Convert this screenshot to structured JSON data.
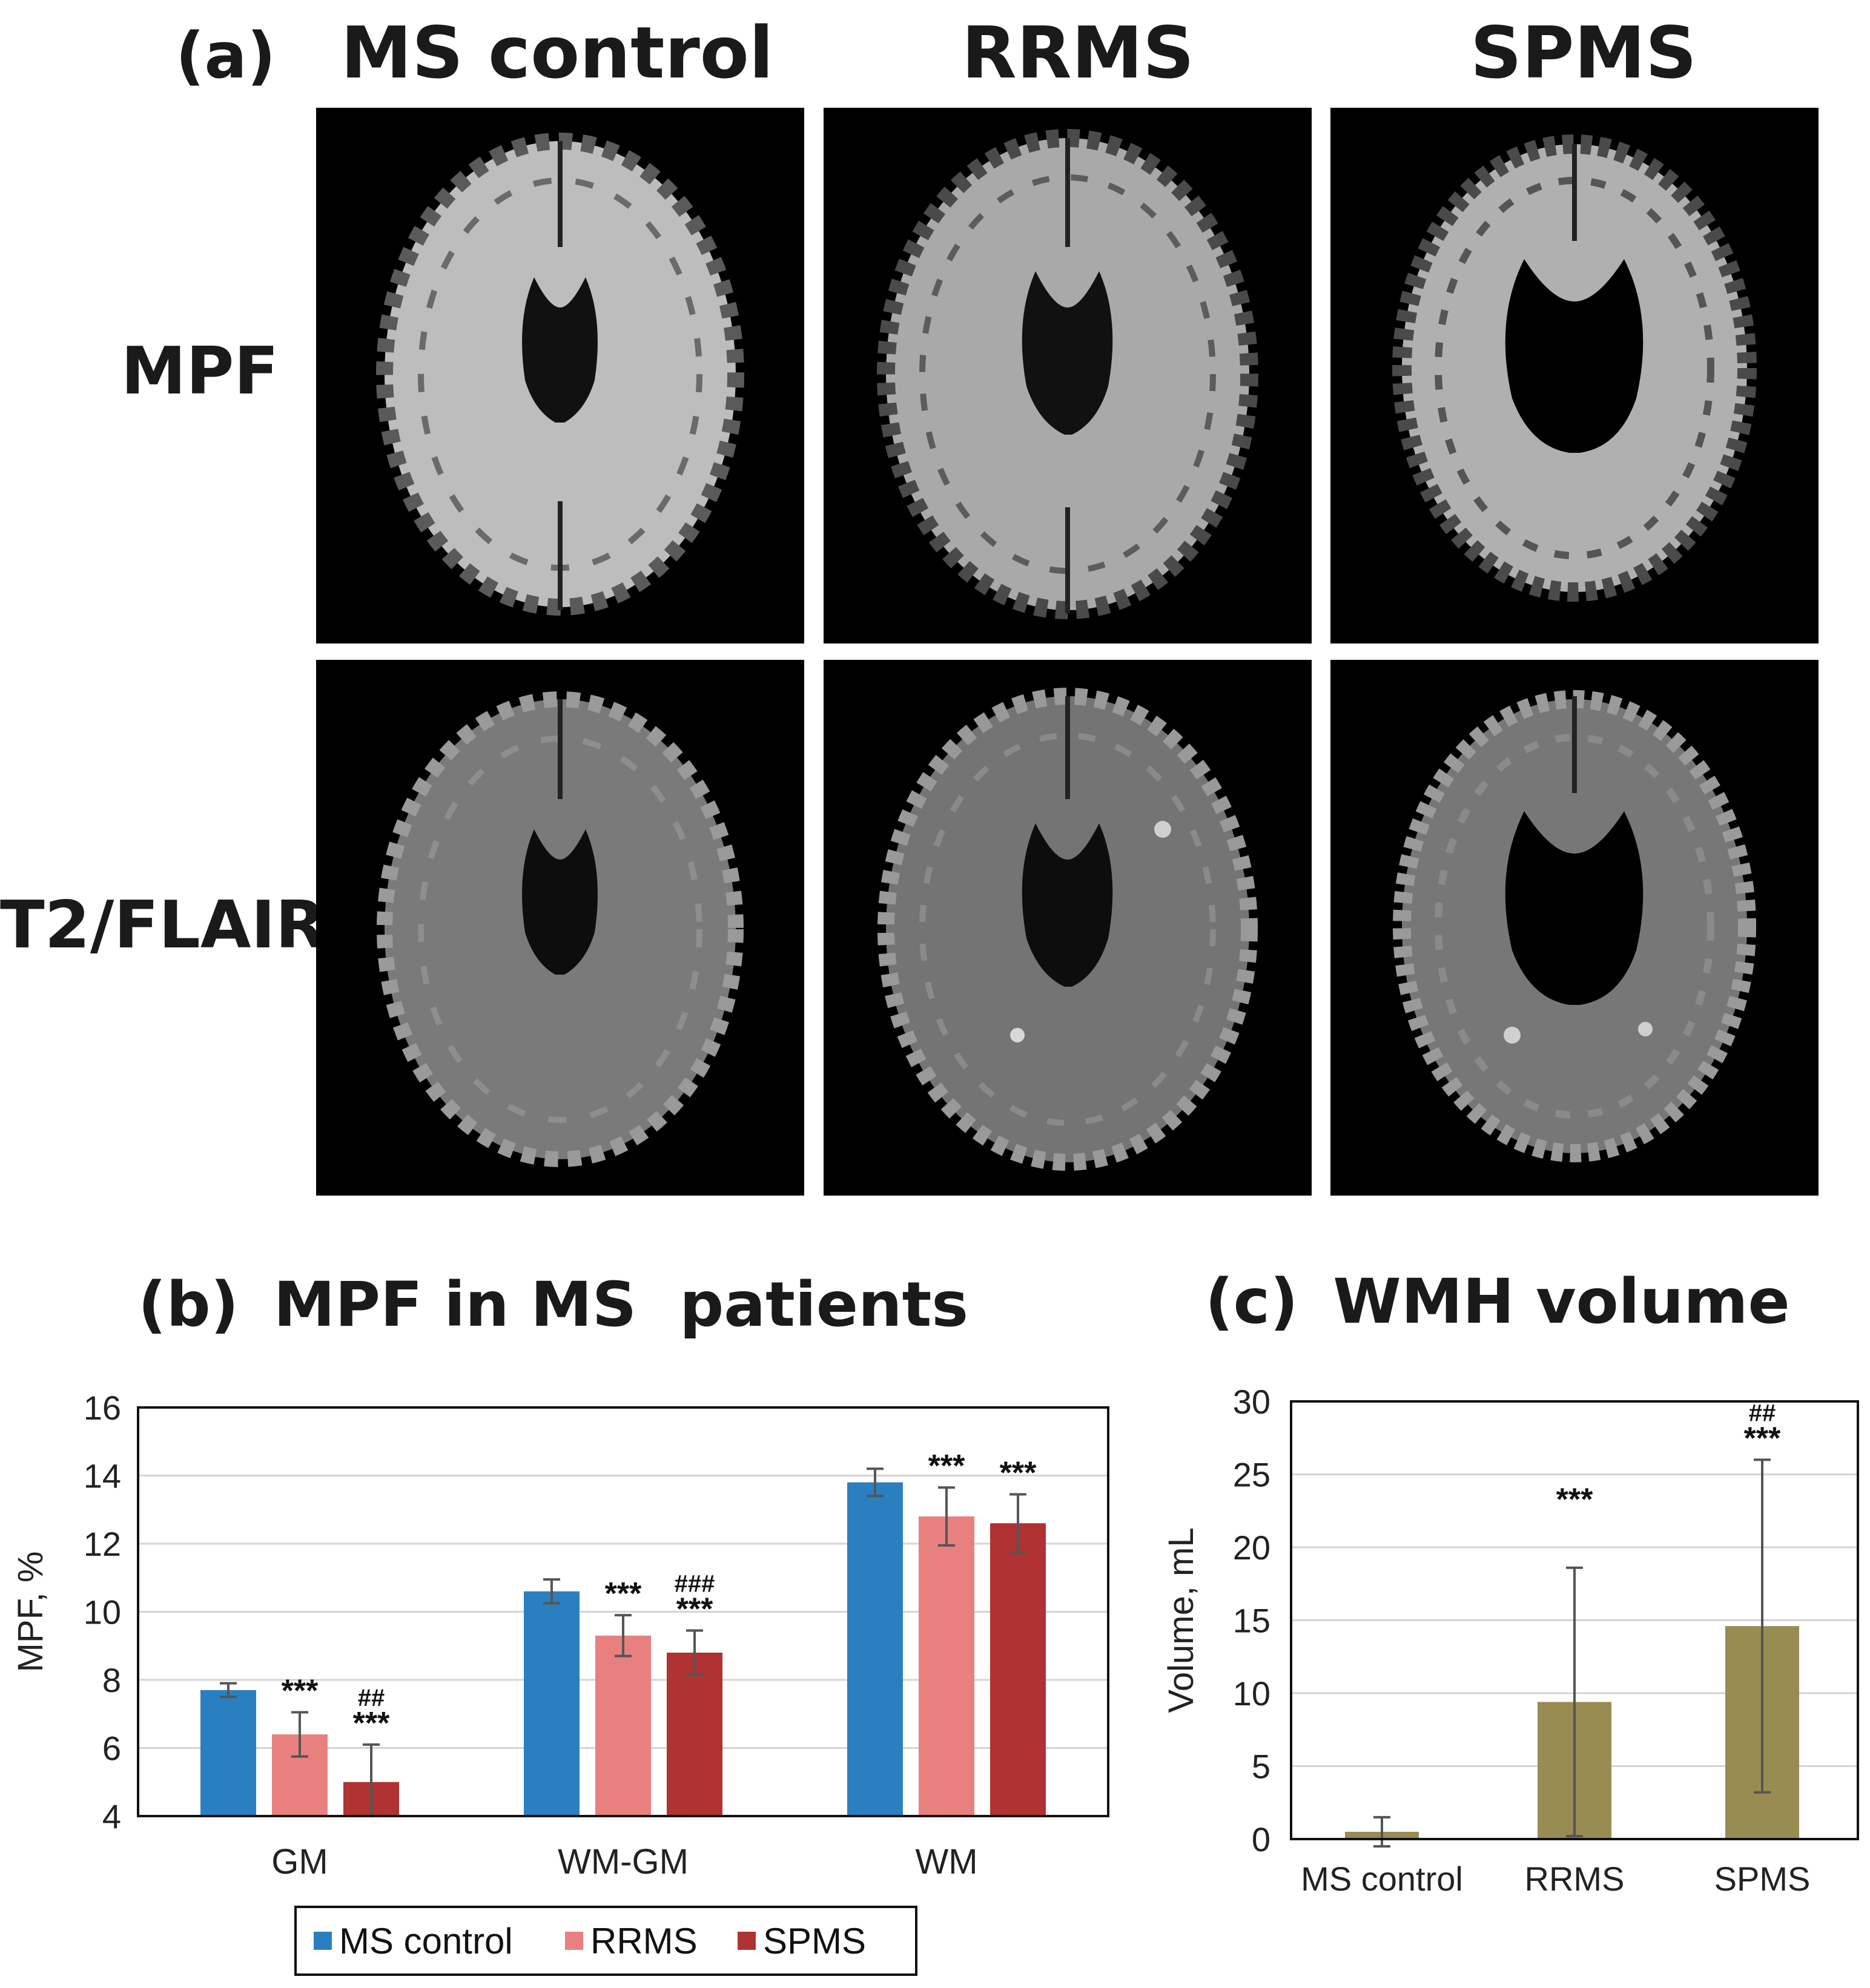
{
  "panel_a": {
    "label": "(a)",
    "columns": [
      "MS control",
      "RRMS",
      "SPMS"
    ],
    "rows": [
      "MPF",
      "T2/FLAIR"
    ]
  },
  "chart_data": [
    {
      "type": "bar",
      "panel_label": "(b)",
      "title": "MPF in MS  patients",
      "ylabel": "MPF, %",
      "xlabel": "",
      "categories": [
        "GM",
        "WM-GM",
        "WM"
      ],
      "ylim": [
        4,
        16
      ],
      "yticks": [
        "4",
        "6",
        "8",
        "10",
        "12",
        "14",
        "16"
      ],
      "grid": true,
      "legend_position": "bottom",
      "series": [
        {
          "name": "MS control",
          "color": "#2a7fc0",
          "values": [
            7.7,
            10.6,
            13.8
          ],
          "errors": [
            0.2,
            0.35,
            0.4
          ],
          "annotations": [
            [],
            [],
            []
          ]
        },
        {
          "name": "RRMS",
          "color": "#e98080",
          "values": [
            6.4,
            9.3,
            12.8
          ],
          "errors": [
            0.65,
            0.6,
            0.85
          ],
          "annotations": [
            [
              "***"
            ],
            [
              "***"
            ],
            [
              "***"
            ]
          ]
        },
        {
          "name": "SPMS",
          "color": "#b03232",
          "values": [
            5.0,
            8.8,
            12.6
          ],
          "errors": [
            1.1,
            0.65,
            0.85
          ],
          "annotations": [
            [
              "##",
              "***"
            ],
            [
              "###",
              "***"
            ],
            [
              "***"
            ]
          ]
        }
      ]
    },
    {
      "type": "bar",
      "panel_label": "(c)",
      "title": "WMH volume",
      "ylabel": "Volume, mL",
      "xlabel": "",
      "categories": [
        "MS control",
        "RRMS",
        "SPMS"
      ],
      "ylim": [
        0,
        30
      ],
      "yticks": [
        "0",
        "5",
        "10",
        "15",
        "20",
        "25",
        "30"
      ],
      "grid": true,
      "color": "#998c52",
      "values": [
        0.5,
        9.4,
        14.6
      ],
      "errors": [
        1.0,
        9.2,
        11.4
      ],
      "annotations": [
        [],
        [
          "***"
        ],
        [
          "##",
          "***"
        ]
      ]
    }
  ]
}
